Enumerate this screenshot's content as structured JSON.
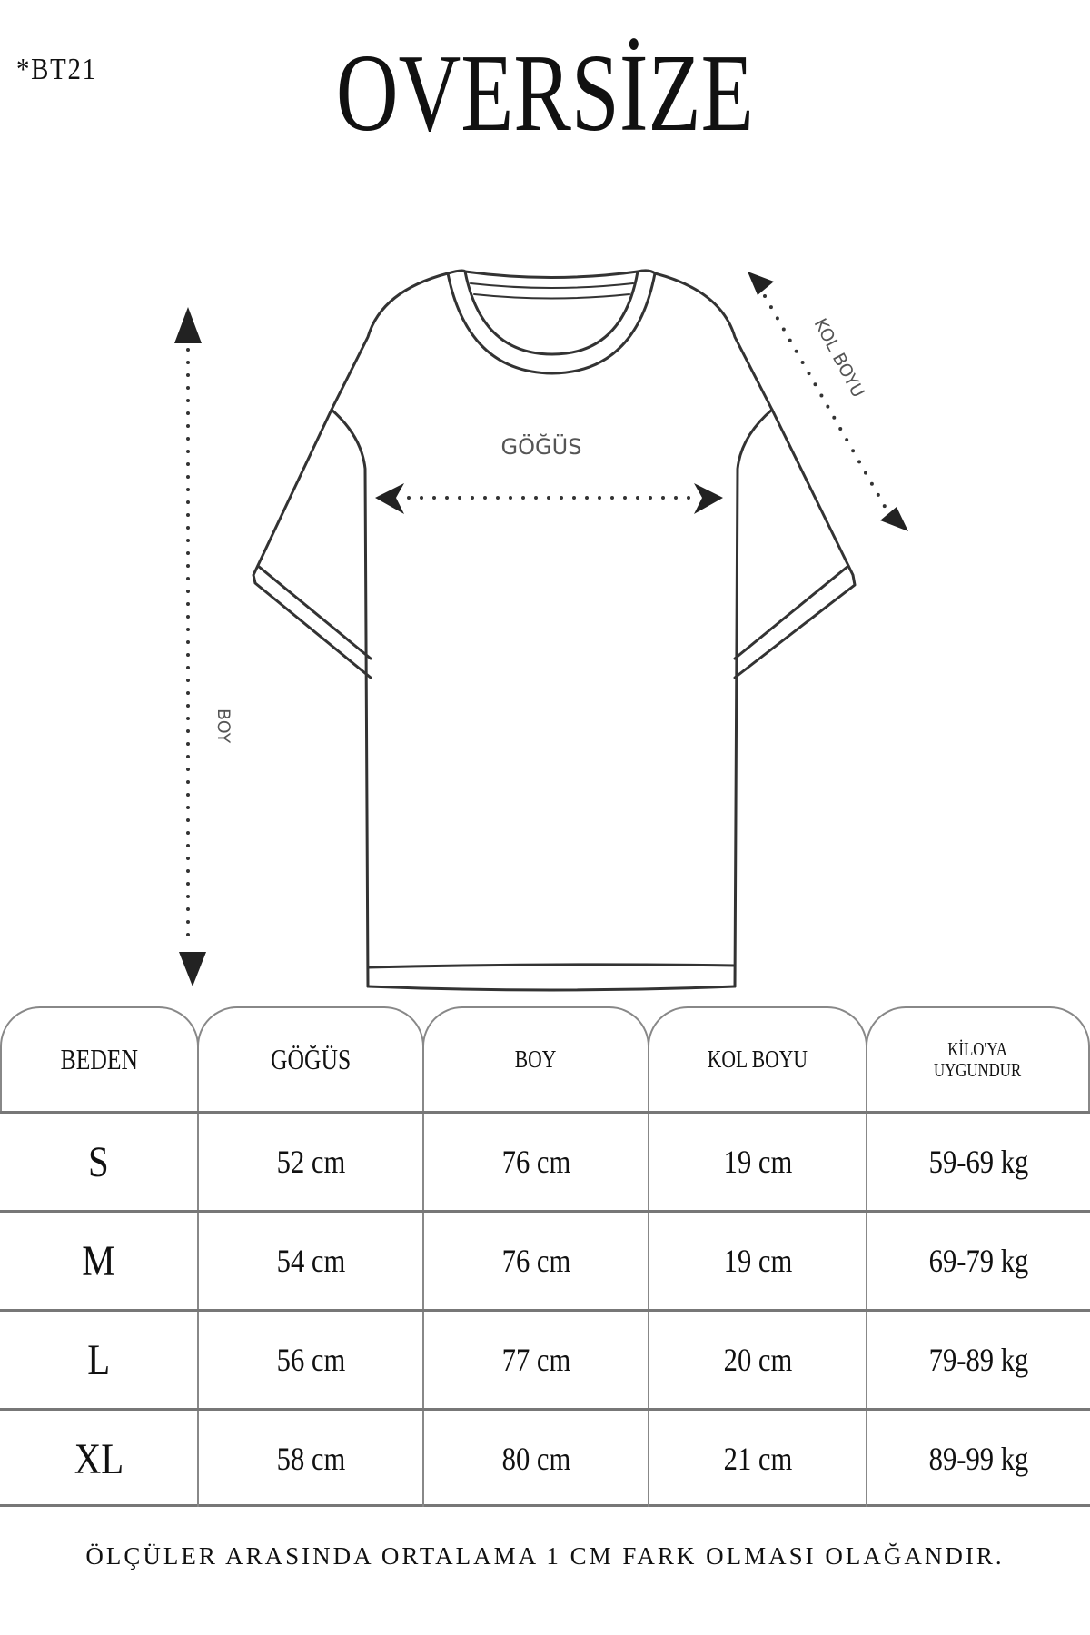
{
  "product_code": "*BT21",
  "title": "OVERSİZE",
  "diagram": {
    "labels": {
      "length": "BOY",
      "chest": "GÖĞÜS",
      "sleeve": "KOL BOYU"
    },
    "line_color": "#333333"
  },
  "table": {
    "headers": [
      "BEDEN",
      "GÖĞÜS",
      "BOY",
      "KOL BOYU",
      "KİLO'YA UYGUNDUR"
    ],
    "header_weight_line1": "KİLO'YA",
    "header_weight_line2": "UYGUNDUR",
    "rows": [
      {
        "size": "S",
        "chest": "52 cm",
        "length": "76 cm",
        "sleeve": "19  cm",
        "weight": "59-69 kg"
      },
      {
        "size": "M",
        "chest": "54 cm",
        "length": "76 cm",
        "sleeve": "19 cm",
        "weight": "69-79 kg"
      },
      {
        "size": "L",
        "chest": "56 cm",
        "length": "77 cm",
        "sleeve": "20 cm",
        "weight": "79-89 kg"
      },
      {
        "size": "XL",
        "chest": "58 cm",
        "length": "80 cm",
        "sleeve": "21 cm",
        "weight": "89-99 kg"
      }
    ],
    "border_color": "#888888"
  },
  "footer_note": "ÖLÇÜLER ARASINDA ORTALAMA 1 CM FARK OLMASI OLAĞANDIR."
}
